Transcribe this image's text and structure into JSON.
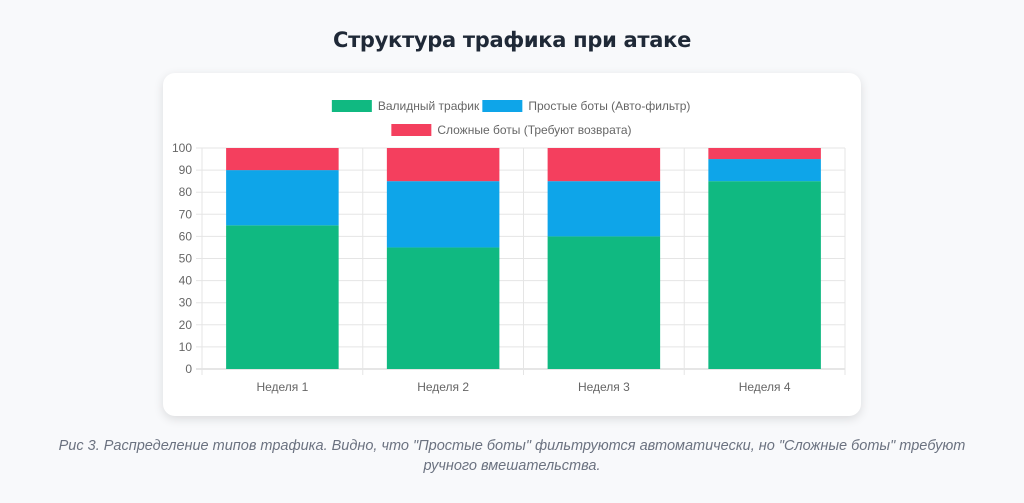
{
  "header": {
    "title": "Структура трафика при атаке"
  },
  "caption": "Рис 3. Распределение типов трафика. Видно, что \"Простые боты\" фильтруются автоматически, но \"Сложные боты\" требуют ручного вмешательства.",
  "chart_data": {
    "type": "bar",
    "stacked": true,
    "title": "Структура трафика при атаке",
    "categories": [
      "Неделя 1",
      "Неделя 2",
      "Неделя 3",
      "Неделя 4"
    ],
    "series": [
      {
        "name": "Валидный трафик",
        "color": "#10b981",
        "values": [
          65,
          55,
          60,
          85
        ]
      },
      {
        "name": "Простые боты (Авто-фильтр)",
        "color": "#0ea5e9",
        "values": [
          25,
          30,
          25,
          10
        ]
      },
      {
        "name": "Сложные боты (Требуют возврата)",
        "color": "#f43f5e",
        "values": [
          10,
          15,
          15,
          5
        ]
      }
    ],
    "yticks": [
      "0",
      "10",
      "20",
      "30",
      "40",
      "50",
      "60",
      "70",
      "80",
      "90",
      "100"
    ],
    "ylim": [
      0,
      100
    ],
    "grid": true,
    "legend": "top"
  }
}
